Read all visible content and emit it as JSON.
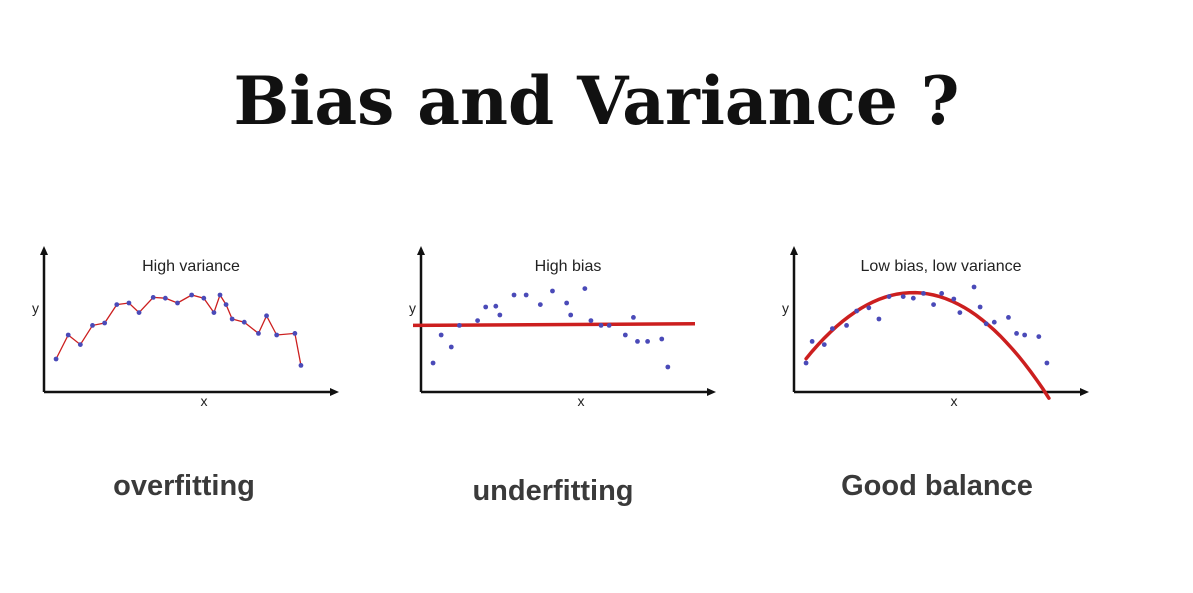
{
  "title": "Bias and Variance ?",
  "colors": {
    "fit_line": "#cc1f1f",
    "points": "#4a4ab8",
    "axis": "#111111"
  },
  "panels": [
    {
      "plot_label": "High variance",
      "xlabel": "x",
      "ylabel": "y",
      "caption": "overfitting",
      "fit": "connect-points",
      "points": [
        [
          0.3,
          0.2
        ],
        [
          0.9,
          0.5
        ],
        [
          1.5,
          0.38
        ],
        [
          2.1,
          0.62
        ],
        [
          2.7,
          0.65
        ],
        [
          3.3,
          0.88
        ],
        [
          3.9,
          0.9
        ],
        [
          4.4,
          0.78
        ],
        [
          5.1,
          0.97
        ],
        [
          5.7,
          0.96
        ],
        [
          6.3,
          0.9
        ],
        [
          7.0,
          1.0
        ],
        [
          7.6,
          0.96
        ],
        [
          8.1,
          0.78
        ],
        [
          8.4,
          1.0
        ],
        [
          8.7,
          0.88
        ],
        [
          9.0,
          0.7
        ],
        [
          9.6,
          0.66
        ],
        [
          10.3,
          0.52
        ],
        [
          10.7,
          0.74
        ],
        [
          11.2,
          0.5
        ],
        [
          12.1,
          0.52
        ],
        [
          12.4,
          0.12
        ]
      ]
    },
    {
      "plot_label": "High bias",
      "xlabel": "x",
      "ylabel": "y",
      "caption": "underfitting",
      "fit": "line",
      "line": [
        0.62,
        0.64
      ],
      "points": [
        [
          0.3,
          0.15
        ],
        [
          0.7,
          0.5
        ],
        [
          1.2,
          0.35
        ],
        [
          1.6,
          0.62
        ],
        [
          2.5,
          0.68
        ],
        [
          2.9,
          0.85
        ],
        [
          3.4,
          0.86
        ],
        [
          3.6,
          0.75
        ],
        [
          4.3,
          1.0
        ],
        [
          4.9,
          1.0
        ],
        [
          5.6,
          0.88
        ],
        [
          6.2,
          1.05
        ],
        [
          6.9,
          0.9
        ],
        [
          7.1,
          0.75
        ],
        [
          7.8,
          1.08
        ],
        [
          8.1,
          0.68
        ],
        [
          8.6,
          0.62
        ],
        [
          9.0,
          0.62
        ],
        [
          9.8,
          0.5
        ],
        [
          10.2,
          0.72
        ],
        [
          10.4,
          0.42
        ],
        [
          10.9,
          0.42
        ],
        [
          11.6,
          0.45
        ],
        [
          11.9,
          0.1
        ]
      ]
    },
    {
      "plot_label": "Low bias, low variance",
      "xlabel": "x",
      "ylabel": "y",
      "caption": "Good balance",
      "fit": "curve",
      "points": [
        [
          0.3,
          0.15
        ],
        [
          0.6,
          0.42
        ],
        [
          1.2,
          0.38
        ],
        [
          1.6,
          0.58
        ],
        [
          2.3,
          0.62
        ],
        [
          2.8,
          0.8
        ],
        [
          3.4,
          0.84
        ],
        [
          3.9,
          0.7
        ],
        [
          4.4,
          0.98
        ],
        [
          5.1,
          0.98
        ],
        [
          5.6,
          0.96
        ],
        [
          6.1,
          1.02
        ],
        [
          6.6,
          0.88
        ],
        [
          7.0,
          1.02
        ],
        [
          7.6,
          0.95
        ],
        [
          7.9,
          0.78
        ],
        [
          8.6,
          1.1
        ],
        [
          8.9,
          0.85
        ],
        [
          9.2,
          0.64
        ],
        [
          9.6,
          0.66
        ],
        [
          10.3,
          0.72
        ],
        [
          10.7,
          0.52
        ],
        [
          11.1,
          0.5
        ],
        [
          11.8,
          0.48
        ],
        [
          12.2,
          0.15
        ]
      ]
    }
  ]
}
